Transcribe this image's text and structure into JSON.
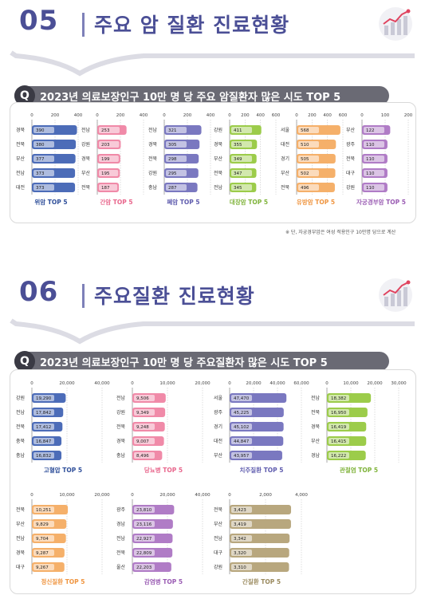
{
  "section5": {
    "number": "05",
    "title": "주요 암 질환 진료현황",
    "question_mark": "Q",
    "question": "2023년 의료보장인구 10만 명 당 주요 암질환자 많은 시도 TOP 5",
    "footnote": "※ 단, 자궁경부암은 여성 적용인구 10만명 당으로 계산"
  },
  "section6": {
    "number": "06",
    "title": "주요질환 진료현황",
    "question_mark": "Q",
    "question": "2023년 의료보장인구 10만 명 당 주요질환자 많은 시도 TOP 5"
  },
  "chart_data": [
    {
      "type": "bar",
      "title": "위암 TOP 5",
      "categories": [
        "경북",
        "전북",
        "부산",
        "전남",
        "대전"
      ],
      "values": [
        390,
        380,
        377,
        373,
        373
      ],
      "ticks": [
        "0",
        "200",
        "400"
      ],
      "xlim": [
        0,
        400
      ],
      "color": "#4c6cb8",
      "title_color": "#2f4f9a"
    },
    {
      "type": "bar",
      "title": "간암 TOP 5",
      "categories": [
        "전남",
        "강원",
        "경북",
        "부산",
        "전북"
      ],
      "values": [
        253,
        203,
        199,
        195,
        187
      ],
      "ticks": [
        "0",
        "200",
        "400"
      ],
      "xlim": [
        0,
        400
      ],
      "color": "#f08aa8",
      "title_color": "#e8668c"
    },
    {
      "type": "bar",
      "title": "폐암 TOP 5",
      "categories": [
        "전남",
        "경북",
        "전북",
        "강원",
        "충남"
      ],
      "values": [
        321,
        305,
        298,
        295,
        287
      ],
      "ticks": [
        "0",
        "200",
        "400"
      ],
      "xlim": [
        0,
        400
      ],
      "color": "#7a78c0",
      "title_color": "#5f5cae"
    },
    {
      "type": "bar",
      "title": "대장암 TOP 5",
      "categories": [
        "강원",
        "경북",
        "부산",
        "전북",
        "전남"
      ],
      "values": [
        411,
        355,
        349,
        347,
        345
      ],
      "ticks": [
        "0",
        "200",
        "400",
        "600"
      ],
      "xlim": [
        0,
        600
      ],
      "color": "#9ccc4a",
      "title_color": "#7fb33a"
    },
    {
      "type": "bar",
      "title": "유방암 TOP 5",
      "categories": [
        "서울",
        "대전",
        "경기",
        "부산",
        "전북"
      ],
      "values": [
        568,
        510,
        505,
        502,
        496
      ],
      "ticks": [
        "0",
        "200",
        "400",
        "600"
      ],
      "xlim": [
        0,
        600
      ],
      "color": "#f5b06a",
      "title_color": "#ef9540"
    },
    {
      "type": "bar",
      "title": "자궁경부암 TOP 5",
      "categories": [
        "부산",
        "광주",
        "전북",
        "대구",
        "강원"
      ],
      "values": [
        122,
        110,
        110,
        110,
        110
      ],
      "ticks": [
        "0",
        "100",
        "200"
      ],
      "xlim": [
        0,
        200
      ],
      "color": "#b07cc6",
      "title_color": "#9a5cb3"
    },
    {
      "type": "bar",
      "title": "고혈압 TOP 5",
      "categories": [
        "강원",
        "전남",
        "전북",
        "충북",
        "충남"
      ],
      "values": [
        19290,
        17842,
        17412,
        16847,
        16832
      ],
      "value_labels": [
        "19,290",
        "17,842",
        "17,412",
        "16,847",
        "16,832"
      ],
      "ticks": [
        "0",
        "20,000",
        "40,000"
      ],
      "xlim": [
        0,
        40000
      ],
      "color": "#4c6cb8",
      "title_color": "#2f4f9a"
    },
    {
      "type": "bar",
      "title": "당뇨병 TOP 5",
      "categories": [
        "전남",
        "강원",
        "전북",
        "경북",
        "충남"
      ],
      "values": [
        9506,
        9349,
        9248,
        9007,
        8496
      ],
      "value_labels": [
        "9,506",
        "9,349",
        "9,248",
        "9,007",
        "8,496"
      ],
      "ticks": [
        "0",
        "10,000",
        "20,000"
      ],
      "xlim": [
        0,
        20000
      ],
      "color": "#f08aa8",
      "title_color": "#e8668c"
    },
    {
      "type": "bar",
      "title": "치주질환 TOP 5",
      "categories": [
        "서울",
        "광주",
        "경기",
        "대전",
        "부산"
      ],
      "values": [
        47470,
        45225,
        45102,
        44847,
        43957
      ],
      "value_labels": [
        "47,470",
        "45,225",
        "45,102",
        "44,847",
        "43,957"
      ],
      "ticks": [
        "0",
        "20,000",
        "40,000",
        "60,000"
      ],
      "xlim": [
        0,
        60000
      ],
      "color": "#7a78c0",
      "title_color": "#5f5cae"
    },
    {
      "type": "bar",
      "title": "관절염 TOP 5",
      "categories": [
        "전남",
        "전북",
        "경북",
        "부산",
        "경남"
      ],
      "values": [
        18382,
        16950,
        16419,
        16415,
        16222
      ],
      "value_labels": [
        "18,382",
        "16,950",
        "16,419",
        "16,415",
        "16,222"
      ],
      "ticks": [
        "0",
        "10,000",
        "20,000",
        "30,000"
      ],
      "xlim": [
        0,
        30000
      ],
      "color": "#9ccc4a",
      "title_color": "#7fb33a"
    },
    {
      "type": "bar",
      "title": "정신질환 TOP 5",
      "categories": [
        "전북",
        "부산",
        "전남",
        "경북",
        "대구"
      ],
      "values": [
        10251,
        9829,
        9704,
        9287,
        9267
      ],
      "value_labels": [
        "10,251",
        "9,829",
        "9,704",
        "9,287",
        "9,267"
      ],
      "ticks": [
        "0",
        "10,000",
        "20,000"
      ],
      "xlim": [
        0,
        20000
      ],
      "color": "#f5b06a",
      "title_color": "#ef9540"
    },
    {
      "type": "bar",
      "title": "감염병 TOP 5",
      "categories": [
        "광주",
        "경남",
        "전남",
        "전북",
        "울산"
      ],
      "values": [
        23810,
        23116,
        22927,
        22809,
        22203
      ],
      "value_labels": [
        "23,810",
        "23,116",
        "22,927",
        "22,809",
        "22,203"
      ],
      "ticks": [
        "0",
        "20,000",
        "40,000"
      ],
      "xlim": [
        0,
        40000
      ],
      "color": "#b07cc6",
      "title_color": "#9a5cb3"
    },
    {
      "type": "bar",
      "title": "간질환 TOP 5",
      "categories": [
        "전북",
        "부산",
        "전남",
        "대구",
        "강원"
      ],
      "values": [
        3423,
        3419,
        3342,
        3320,
        3310
      ],
      "value_labels": [
        "3,423",
        "3,419",
        "3,342",
        "3,320",
        "3,310"
      ],
      "ticks": [
        "0",
        "2,000",
        "4,000"
      ],
      "xlim": [
        0,
        4000
      ],
      "color": "#b8a77e",
      "title_color": "#9a8a5e"
    }
  ]
}
